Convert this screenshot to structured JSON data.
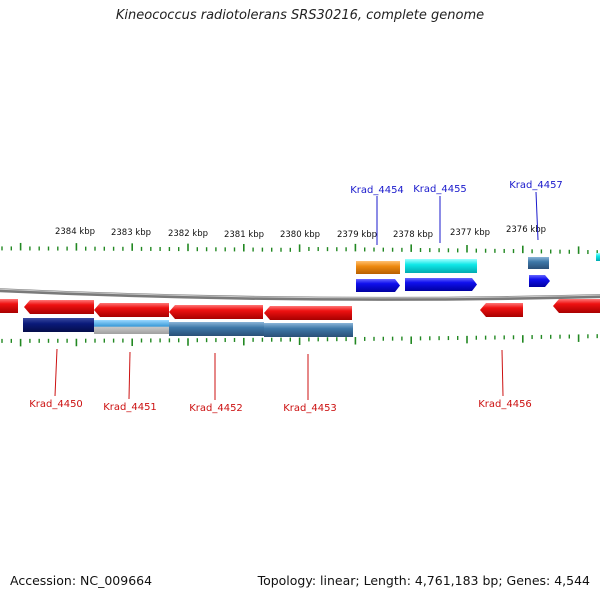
{
  "title": "Kineococcus radiotolerans SRS30216, complete genome",
  "footer": {
    "accession": "Accession: NC_009664",
    "summary": "Topology: linear; Length: 4,761,183 bp; Genes: 4,544"
  },
  "colors": {
    "forward_label": "#1a1acc",
    "reverse_label": "#cc1111",
    "tick": "#228822",
    "backbone": "#8c8c8c",
    "gene_red": "#ee1111",
    "gene_blue": "#1010ee",
    "cds_dark_blue": "#0a1a7a",
    "cds_light_blue": "#3a9ad8",
    "cds_steel_blue": "#3e78a8",
    "cds_orange": "#ee8a10",
    "cds_cyan": "#10e8e8"
  },
  "axis": {
    "tick_labels": [
      "2384 kbp",
      "2383 kbp",
      "2382 kbp",
      "2381 kbp",
      "2380 kbp",
      "2379 kbp",
      "2378 kbp",
      "2377 kbp",
      "2376 kbp"
    ]
  },
  "genes": {
    "forward": [
      {
        "label": "Krad_4454",
        "gene_color": "gene_blue",
        "cds_color": "cds_orange"
      },
      {
        "label": "Krad_4455",
        "gene_color": "gene_blue",
        "cds_color": "cds_cyan"
      },
      {
        "label": "Krad_4457",
        "gene_color": "gene_blue",
        "cds_color": "cds_steel_blue"
      }
    ],
    "reverse": [
      {
        "label": "Krad_4450",
        "gene_color": "gene_red",
        "cds_color": "cds_dark_blue"
      },
      {
        "label": "Krad_4451",
        "gene_color": "gene_red",
        "cds_color": "cds_light_blue"
      },
      {
        "label": "Krad_4452",
        "gene_color": "gene_red",
        "cds_color": "cds_steel_blue"
      },
      {
        "label": "Krad_4453",
        "gene_color": "gene_red",
        "cds_color": "cds_steel_blue"
      },
      {
        "label": "Krad_4456",
        "gene_color": "gene_red",
        "cds_color": ""
      }
    ]
  }
}
